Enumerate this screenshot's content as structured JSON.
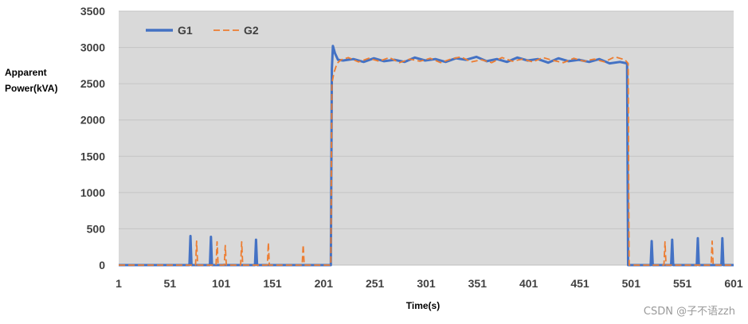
{
  "chart_data": {
    "type": "line",
    "title": "",
    "xlabel": "Time(s)",
    "ylabel_lines": [
      "Apparent",
      "Power(kVA)"
    ],
    "xlim": [
      1,
      601
    ],
    "ylim": [
      0,
      3500
    ],
    "x_ticks": [
      "1",
      "51",
      "101",
      "151",
      "201",
      "251",
      "301",
      "351",
      "401",
      "451",
      "501",
      "551",
      "601"
    ],
    "y_ticks": [
      "0",
      "500",
      "1000",
      "1500",
      "2000",
      "2500",
      "3000",
      "3500"
    ],
    "grid": true,
    "background": "#d9d9d9",
    "legend": {
      "placement": "top-left"
    },
    "series": [
      {
        "name": "G1",
        "color": "#4472c4",
        "style": "solid",
        "points": [
          [
            1,
            0
          ],
          [
            70,
            0
          ],
          [
            71,
            400
          ],
          [
            72,
            0
          ],
          [
            90,
            0
          ],
          [
            91,
            390
          ],
          [
            92,
            0
          ],
          [
            134,
            0
          ],
          [
            135,
            350
          ],
          [
            136,
            0
          ],
          [
            208,
            0
          ],
          [
            209,
            2700
          ],
          [
            210,
            3020
          ],
          [
            212,
            2920
          ],
          [
            215,
            2830
          ],
          [
            220,
            2820
          ],
          [
            230,
            2840
          ],
          [
            240,
            2800
          ],
          [
            250,
            2850
          ],
          [
            260,
            2810
          ],
          [
            270,
            2830
          ],
          [
            280,
            2800
          ],
          [
            290,
            2860
          ],
          [
            300,
            2820
          ],
          [
            310,
            2840
          ],
          [
            320,
            2800
          ],
          [
            330,
            2850
          ],
          [
            340,
            2830
          ],
          [
            350,
            2870
          ],
          [
            360,
            2810
          ],
          [
            370,
            2840
          ],
          [
            380,
            2800
          ],
          [
            390,
            2860
          ],
          [
            400,
            2820
          ],
          [
            410,
            2840
          ],
          [
            420,
            2790
          ],
          [
            430,
            2850
          ],
          [
            440,
            2810
          ],
          [
            450,
            2830
          ],
          [
            460,
            2800
          ],
          [
            470,
            2840
          ],
          [
            480,
            2780
          ],
          [
            490,
            2800
          ],
          [
            497,
            2780
          ],
          [
            498,
            0
          ],
          [
            520,
            0
          ],
          [
            521,
            330
          ],
          [
            522,
            0
          ],
          [
            540,
            0
          ],
          [
            541,
            350
          ],
          [
            542,
            0
          ],
          [
            565,
            0
          ],
          [
            566,
            370
          ],
          [
            567,
            0
          ],
          [
            589,
            0
          ],
          [
            590,
            370
          ],
          [
            591,
            0
          ],
          [
            601,
            0
          ]
        ]
      },
      {
        "name": "G2",
        "color": "#ed7d31",
        "style": "dashed",
        "points": [
          [
            1,
            0
          ],
          [
            76,
            0
          ],
          [
            77,
            330
          ],
          [
            78,
            0
          ],
          [
            96,
            0
          ],
          [
            97,
            320
          ],
          [
            98,
            0
          ],
          [
            104,
            0
          ],
          [
            105,
            270
          ],
          [
            106,
            0
          ],
          [
            120,
            0
          ],
          [
            121,
            320
          ],
          [
            122,
            0
          ],
          [
            146,
            0
          ],
          [
            147,
            310
          ],
          [
            148,
            0
          ],
          [
            180,
            0
          ],
          [
            181,
            280
          ],
          [
            182,
            0
          ],
          [
            208,
            0
          ],
          [
            209,
            2500
          ],
          [
            211,
            2650
          ],
          [
            214,
            2780
          ],
          [
            218,
            2830
          ],
          [
            225,
            2860
          ],
          [
            235,
            2800
          ],
          [
            245,
            2850
          ],
          [
            255,
            2810
          ],
          [
            265,
            2860
          ],
          [
            275,
            2790
          ],
          [
            285,
            2840
          ],
          [
            295,
            2810
          ],
          [
            305,
            2850
          ],
          [
            315,
            2790
          ],
          [
            325,
            2840
          ],
          [
            335,
            2870
          ],
          [
            345,
            2800
          ],
          [
            355,
            2830
          ],
          [
            365,
            2790
          ],
          [
            375,
            2860
          ],
          [
            385,
            2810
          ],
          [
            395,
            2840
          ],
          [
            405,
            2800
          ],
          [
            415,
            2860
          ],
          [
            425,
            2820
          ],
          [
            435,
            2790
          ],
          [
            445,
            2850
          ],
          [
            455,
            2810
          ],
          [
            465,
            2840
          ],
          [
            475,
            2800
          ],
          [
            485,
            2870
          ],
          [
            495,
            2830
          ],
          [
            498,
            2780
          ],
          [
            499,
            0
          ],
          [
            533,
            0
          ],
          [
            534,
            320
          ],
          [
            535,
            0
          ],
          [
            579,
            0
          ],
          [
            580,
            330
          ],
          [
            581,
            0
          ],
          [
            601,
            0
          ]
        ]
      }
    ]
  },
  "watermark": "CSDN @子不语zzh"
}
